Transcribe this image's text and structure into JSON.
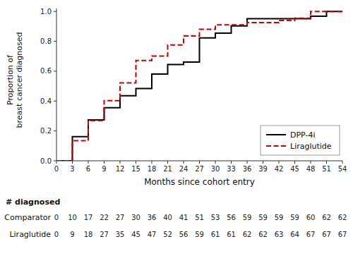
{
  "chart_data": {
    "type": "step",
    "xlabel": "Months since cohort entry",
    "ylabel": "Proportion of\nbreast cancer diagnosed",
    "x": [
      0,
      3,
      6,
      9,
      12,
      15,
      18,
      21,
      24,
      27,
      30,
      33,
      36,
      39,
      42,
      45,
      48,
      51,
      54
    ],
    "xlim": [
      0,
      54
    ],
    "ylim": [
      0.0,
      1.02
    ],
    "xticks": [
      0,
      3,
      6,
      9,
      12,
      15,
      18,
      21,
      24,
      27,
      30,
      33,
      36,
      39,
      42,
      45,
      48,
      51,
      54
    ],
    "yticks": [
      {
        "value": 0.0,
        "label": "0.0"
      },
      {
        "value": 0.2,
        "label": "0.2"
      },
      {
        "value": 0.4,
        "label": "0.4"
      },
      {
        "value": 0.6,
        "label": "0.6"
      },
      {
        "value": 0.8,
        "label": "0.8"
      },
      {
        "value": 1.0,
        "label": "1.0"
      }
    ],
    "series": [
      {
        "name": "DPP-4i",
        "color": "#000000",
        "line_style": "solid",
        "values": [
          0,
          0.16129032258064516,
          0.27419354838709675,
          0.3548387096774194,
          0.43548387096774194,
          0.4838709677419355,
          0.5806451612903226,
          0.6451612903225806,
          0.6612903225806451,
          0.8225806451612903,
          0.8548387096774194,
          0.9032258064516129,
          0.9516129032258065,
          0.9516129032258065,
          0.9516129032258065,
          0.9516129032258065,
          0.967741935483871,
          1,
          1
        ]
      },
      {
        "name": "Liraglutide",
        "color": "#cc0000",
        "line_style": "dashed",
        "values": [
          0,
          0.13432835820895522,
          0.26865671641791045,
          0.40298507462686567,
          0.5223880597014925,
          0.6716417910447762,
          0.7014925373134329,
          0.7761194029850746,
          0.835820895522388,
          0.8805970149253731,
          0.9104477611940298,
          0.9104477611940298,
          0.9253731343283582,
          0.9253731343283582,
          0.9402985074626866,
          0.9552238805970149,
          1,
          1,
          1
        ]
      }
    ],
    "legend": "lower right",
    "grid": false,
    "table": {
      "header": "# diagnosed",
      "rows": [
        {
          "name": "Comparator",
          "values": [
            0,
            10,
            17,
            22,
            27,
            30,
            36,
            40,
            41,
            51,
            53,
            56,
            59,
            59,
            59,
            59,
            60,
            62,
            62
          ]
        },
        {
          "name": "Liraglutide",
          "values": [
            0,
            9,
            18,
            27,
            35,
            45,
            47,
            52,
            56,
            59,
            61,
            61,
            62,
            62,
            63,
            64,
            67,
            67,
            67
          ]
        }
      ]
    }
  }
}
